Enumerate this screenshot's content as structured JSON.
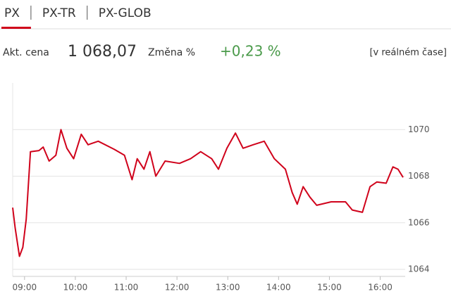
{
  "tabs": [
    {
      "label": "PX",
      "active": true
    },
    {
      "label": "PX-TR",
      "active": false
    },
    {
      "label": "PX-GLOB",
      "active": false
    }
  ],
  "quote": {
    "price_label": "Akt. cena",
    "price": "1 068,07",
    "change_label": "Změna %",
    "change": "+0,23 %",
    "realtime": "[v reálném čase]"
  },
  "chart_data": {
    "type": "line",
    "x": [
      "08:46",
      "08:49",
      "08:54",
      "08:58",
      "09:02",
      "09:07",
      "09:17",
      "09:22",
      "09:29",
      "09:37",
      "09:43",
      "09:50",
      "09:58",
      "10:07",
      "10:15",
      "10:27",
      "10:46",
      "10:58",
      "11:07",
      "11:13",
      "11:21",
      "11:28",
      "11:35",
      "11:46",
      "12:03",
      "12:16",
      "12:28",
      "12:41",
      "12:49",
      "12:59",
      "13:09",
      "13:18",
      "13:30",
      "13:43",
      "13:55",
      "14:08",
      "14:16",
      "14:22",
      "14:29",
      "14:37",
      "14:45",
      "15:02",
      "15:19",
      "15:27",
      "15:39",
      "15:48",
      "15:56",
      "16:07",
      "16:15",
      "16:21",
      "16:27"
    ],
    "series": [
      {
        "color": "#d0021b",
        "values": [
          1066.65,
          1065.76,
          1064.56,
          1064.95,
          1066.15,
          1069.05,
          1069.1,
          1069.25,
          1068.65,
          1068.9,
          1070.0,
          1069.2,
          1068.75,
          1069.8,
          1069.35,
          1069.5,
          1069.15,
          1068.9,
          1067.85,
          1068.75,
          1068.3,
          1069.05,
          1068.0,
          1068.65,
          1068.55,
          1068.75,
          1069.05,
          1068.75,
          1068.3,
          1069.2,
          1069.85,
          1069.2,
          1069.35,
          1069.5,
          1068.75,
          1068.3,
          1067.3,
          1066.8,
          1067.55,
          1067.1,
          1066.75,
          1066.9,
          1066.9,
          1066.55,
          1066.45,
          1067.55,
          1067.75,
          1067.7,
          1068.4,
          1068.3,
          1067.95
        ]
      }
    ],
    "xlim": [
      "08:46",
      "16:27"
    ],
    "xticks": [
      "09:00",
      "10:00",
      "11:00",
      "12:00",
      "13:00",
      "14:00",
      "15:00",
      "16:00"
    ],
    "ylim": [
      1063.7,
      1072
    ],
    "yticks": [
      1064,
      1066,
      1068,
      1070
    ],
    "grid": true
  }
}
